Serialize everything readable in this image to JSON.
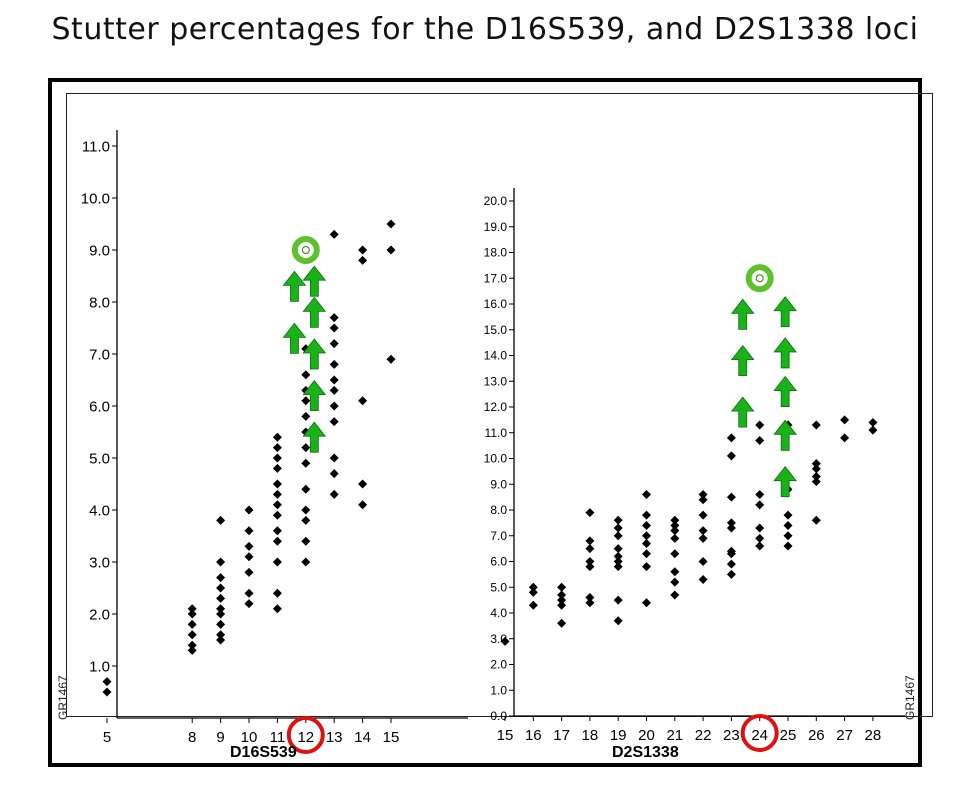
{
  "title": "Stutter percentages for the D16S539, and D2S1338 loci",
  "colors": {
    "marker": "#000000",
    "arrow": "#19b219",
    "circle": "#e01010",
    "ring": "#5cc12a"
  },
  "chart_data": [
    {
      "type": "scatter",
      "xlabel": "D16S539",
      "ylabel": "",
      "side_label": "GR1467",
      "x_ticks": [
        5,
        8,
        9,
        10,
        11,
        12,
        13,
        14,
        15
      ],
      "x_tick_labels": [
        "5",
        "8",
        "9",
        "10",
        "11",
        "12",
        "13",
        "14",
        "15"
      ],
      "y_ticks": [
        1.0,
        2.0,
        3.0,
        4.0,
        5.0,
        6.0,
        7.0,
        8.0,
        9.0,
        10.0,
        11.0
      ],
      "y_tick_labels": [
        "1.0",
        "2.0",
        "3.0",
        "4.0",
        "5.0",
        "6.0",
        "7.0",
        "8.0",
        "9.0",
        "10.0",
        "11.0"
      ],
      "xlim": [
        4,
        17
      ],
      "ylim": [
        0,
        11.2
      ],
      "highlighted_x": 12,
      "points": [
        [
          5,
          0.5
        ],
        [
          5,
          0.7
        ],
        [
          8,
          1.3
        ],
        [
          8,
          1.4
        ],
        [
          8,
          1.6
        ],
        [
          8,
          1.8
        ],
        [
          8,
          2.0
        ],
        [
          8,
          2.1
        ],
        [
          9,
          1.5
        ],
        [
          9,
          1.6
        ],
        [
          9,
          1.8
        ],
        [
          9,
          2.0
        ],
        [
          9,
          2.1
        ],
        [
          9,
          2.3
        ],
        [
          9,
          2.5
        ],
        [
          9,
          2.7
        ],
        [
          9,
          3.0
        ],
        [
          9,
          3.8
        ],
        [
          10,
          2.2
        ],
        [
          10,
          2.4
        ],
        [
          10,
          2.8
        ],
        [
          10,
          3.1
        ],
        [
          10,
          3.3
        ],
        [
          10,
          3.6
        ],
        [
          10,
          4.0
        ],
        [
          11,
          2.1
        ],
        [
          11,
          2.4
        ],
        [
          11,
          3.0
        ],
        [
          11,
          3.4
        ],
        [
          11,
          3.6
        ],
        [
          11,
          3.9
        ],
        [
          11,
          4.1
        ],
        [
          11,
          4.3
        ],
        [
          11,
          4.5
        ],
        [
          11,
          4.8
        ],
        [
          11,
          5.0
        ],
        [
          11,
          5.2
        ],
        [
          11,
          5.4
        ],
        [
          12,
          3.0
        ],
        [
          12,
          3.4
        ],
        [
          12,
          3.8
        ],
        [
          12,
          4.0
        ],
        [
          12,
          4.4
        ],
        [
          12,
          4.9
        ],
        [
          12,
          5.2
        ],
        [
          12,
          5.5
        ],
        [
          12,
          5.8
        ],
        [
          12,
          6.1
        ],
        [
          12,
          6.3
        ],
        [
          12,
          6.6
        ],
        [
          12,
          7.1
        ],
        [
          13,
          4.3
        ],
        [
          13,
          4.7
        ],
        [
          13,
          5.0
        ],
        [
          13,
          5.7
        ],
        [
          13,
          6.0
        ],
        [
          13,
          6.3
        ],
        [
          13,
          6.5
        ],
        [
          13,
          6.8
        ],
        [
          13,
          7.2
        ],
        [
          13,
          7.5
        ],
        [
          13,
          7.7
        ],
        [
          13,
          9.3
        ],
        [
          14,
          4.1
        ],
        [
          14,
          4.5
        ],
        [
          14,
          6.1
        ],
        [
          14,
          8.8
        ],
        [
          14,
          9.0
        ],
        [
          15,
          6.9
        ],
        [
          15,
          9.0
        ],
        [
          15,
          9.5
        ]
      ],
      "arrows": [
        [
          11.6,
          8.3
        ],
        [
          11.6,
          7.3
        ],
        [
          12.3,
          8.4
        ],
        [
          12.3,
          7.8
        ],
        [
          12.3,
          7.0
        ],
        [
          12.3,
          6.2
        ],
        [
          12.3,
          5.4
        ]
      ],
      "ring": [
        12,
        9.0
      ]
    },
    {
      "type": "scatter",
      "xlabel": "D2S1338",
      "ylabel": "",
      "side_label": "GR1467",
      "x_ticks": [
        15,
        16,
        17,
        18,
        19,
        20,
        21,
        22,
        23,
        24,
        25,
        26,
        27,
        28
      ],
      "x_tick_labels": [
        "15",
        "16",
        "17",
        "18",
        "19",
        "20",
        "21",
        "22",
        "23",
        "24",
        "25",
        "26",
        "27",
        "28"
      ],
      "y_ticks": [
        0,
        1,
        2,
        3,
        4,
        5,
        6,
        7,
        8,
        9,
        10,
        11,
        12,
        13,
        14,
        15,
        16,
        17,
        18,
        19,
        20
      ],
      "y_tick_labels": [
        "0.0",
        "1.0",
        "2.0",
        "3.0",
        "4.0",
        "5.0",
        "6.0",
        "7.0",
        "8.0",
        "9.0",
        "10.0",
        "11.0",
        "12.0",
        "13.0",
        "14.0",
        "15.0",
        "16.0",
        "17.0",
        "18.0",
        "19.0",
        "20.0"
      ],
      "xlim": [
        15,
        29
      ],
      "ylim": [
        0,
        20.5
      ],
      "highlighted_x": 24,
      "points": [
        [
          15,
          2.9
        ],
        [
          16,
          4.3
        ],
        [
          16,
          4.8
        ],
        [
          16,
          5.0
        ],
        [
          17,
          3.6
        ],
        [
          17,
          4.3
        ],
        [
          17,
          4.5
        ],
        [
          17,
          4.7
        ],
        [
          17,
          5.0
        ],
        [
          18,
          4.4
        ],
        [
          18,
          4.6
        ],
        [
          18,
          5.8
        ],
        [
          18,
          6.0
        ],
        [
          18,
          6.5
        ],
        [
          18,
          6.8
        ],
        [
          18,
          7.9
        ],
        [
          19,
          3.7
        ],
        [
          19,
          4.5
        ],
        [
          19,
          5.8
        ],
        [
          19,
          6.0
        ],
        [
          19,
          6.2
        ],
        [
          19,
          6.5
        ],
        [
          19,
          7.0
        ],
        [
          19,
          7.3
        ],
        [
          19,
          7.6
        ],
        [
          20,
          4.4
        ],
        [
          20,
          5.8
        ],
        [
          20,
          6.3
        ],
        [
          20,
          6.7
        ],
        [
          20,
          7.0
        ],
        [
          20,
          7.4
        ],
        [
          20,
          7.8
        ],
        [
          20,
          8.6
        ],
        [
          21,
          4.7
        ],
        [
          21,
          5.2
        ],
        [
          21,
          5.6
        ],
        [
          21,
          6.3
        ],
        [
          21,
          6.9
        ],
        [
          21,
          7.2
        ],
        [
          21,
          7.4
        ],
        [
          21,
          7.6
        ],
        [
          22,
          5.3
        ],
        [
          22,
          6.0
        ],
        [
          22,
          6.9
        ],
        [
          22,
          7.2
        ],
        [
          22,
          7.8
        ],
        [
          22,
          8.4
        ],
        [
          22,
          8.6
        ],
        [
          23,
          5.5
        ],
        [
          23,
          5.9
        ],
        [
          23,
          6.3
        ],
        [
          23,
          6.4
        ],
        [
          23,
          7.3
        ],
        [
          23,
          7.5
        ],
        [
          23,
          8.5
        ],
        [
          23,
          10.1
        ],
        [
          23,
          10.8
        ],
        [
          24,
          6.6
        ],
        [
          24,
          6.9
        ],
        [
          24,
          7.3
        ],
        [
          24,
          8.2
        ],
        [
          24,
          8.6
        ],
        [
          24,
          10.7
        ],
        [
          24,
          11.3
        ],
        [
          25,
          6.6
        ],
        [
          25,
          7.0
        ],
        [
          25,
          7.4
        ],
        [
          25,
          7.8
        ],
        [
          25,
          8.8
        ],
        [
          25,
          11.3
        ],
        [
          26,
          7.6
        ],
        [
          26,
          9.1
        ],
        [
          26,
          9.3
        ],
        [
          26,
          9.6
        ],
        [
          26,
          9.8
        ],
        [
          26,
          11.3
        ],
        [
          27,
          10.8
        ],
        [
          27,
          11.5
        ],
        [
          28,
          11.1
        ],
        [
          28,
          11.4
        ]
      ],
      "arrows": [
        [
          23.4,
          15.6
        ],
        [
          23.4,
          13.8
        ],
        [
          23.4,
          11.8
        ],
        [
          24.9,
          15.7
        ],
        [
          24.9,
          14.1
        ],
        [
          24.9,
          12.6
        ],
        [
          24.9,
          10.9
        ],
        [
          24.9,
          9.1
        ]
      ],
      "ring": [
        24,
        17.0
      ]
    }
  ]
}
